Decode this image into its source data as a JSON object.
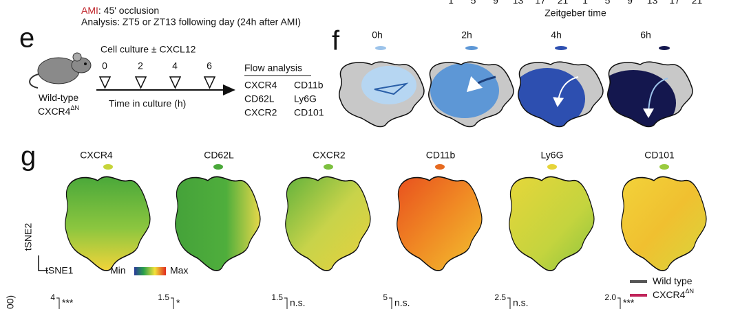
{
  "top": {
    "ami_label": "AMI",
    "ami_text": ": 45' occlusion",
    "analysis": "Analysis: ZT5 or ZT13 following day (24h after AMI)",
    "zt_ticks": [
      "1",
      "5",
      "9",
      "13",
      "17",
      "21",
      "1",
      "5",
      "9",
      "13",
      "17",
      "21"
    ],
    "zt_label": "Zeitgeber time"
  },
  "panel_e": {
    "letter": "e",
    "title": "Cell culture ± CXCL12",
    "timepoints": [
      "0",
      "2",
      "4",
      "6"
    ],
    "axis_label": "Time in culture (h)",
    "mouse": [
      {
        "base": "Wild-type"
      },
      {
        "base": "CXCR4",
        "sup": "ΔN"
      }
    ],
    "flow_title": "Flow analysis",
    "markers": [
      [
        "CXCR4",
        "CD11b"
      ],
      [
        "CD62L",
        "Ly6G"
      ],
      [
        "CXCR2",
        "CD101"
      ]
    ]
  },
  "panel_f": {
    "letter": "f",
    "timepoints": [
      "0h",
      "2h",
      "4h",
      "6h"
    ]
  },
  "panel_g": {
    "letter": "g",
    "markers": [
      "CXCR4",
      "CD62L",
      "CXCR2",
      "CD11b",
      "Ly6G",
      "CD101"
    ],
    "y_axis": "tSNE2",
    "x_axis": "tSNE1",
    "scale_min": "Min",
    "scale_max": "Max"
  },
  "bottom": {
    "y_label": "00)",
    "legend": [
      {
        "base": "Wild type"
      },
      {
        "base": "CXCR4",
        "sup": "ΔN"
      }
    ],
    "panels": [
      {
        "tick": "4",
        "sig": "***"
      },
      {
        "tick": "1.5",
        "sig": "*"
      },
      {
        "tick": "1.5",
        "sig": "n.s."
      },
      {
        "tick": "5",
        "sig": "n.s."
      },
      {
        "tick": "2.5",
        "sig": "n.s."
      },
      {
        "tick": "2.0",
        "sig": "***"
      }
    ]
  }
}
